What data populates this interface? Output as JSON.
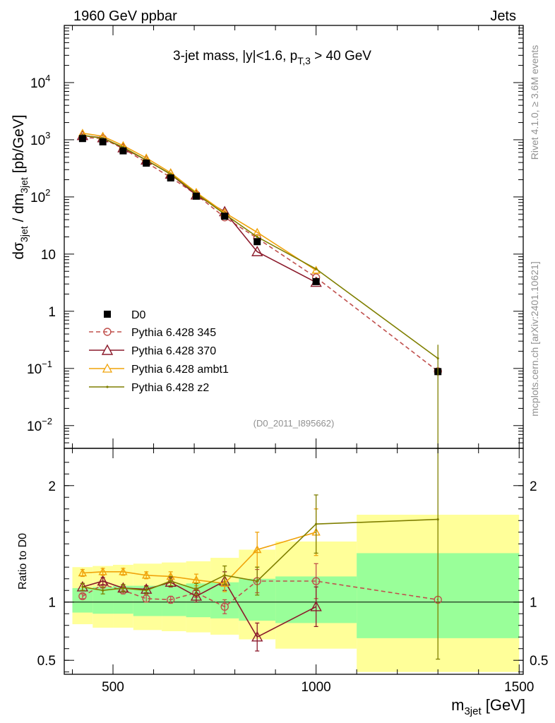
{
  "header": {
    "left": "1960 GeV ppbar",
    "right": "Jets",
    "plot_title_main": "3-jet mass, |y|<1.6, p",
    "plot_title_sub": "T,3",
    "plot_title_tail": " > 40 GeV",
    "analysis_id": "(D0_2011_I895662)",
    "side_top": "Rivet 4.1.0, ≥ 3.6M events",
    "side_bottom": "mcplots.cern.ch [arXiv:2401.10621]"
  },
  "axes": {
    "ylabel_main": "dσ",
    "ylabel_main_sub": "3jet",
    "ylabel_main_mid": " / dm",
    "ylabel_main_sub2": "3jet",
    "ylabel_main_tail": " [pb/GeV]",
    "ylabel_ratio": "Ratio to D0",
    "xlabel": "m",
    "xlabel_sub": "3jet",
    "xlabel_tail": " [GeV]"
  },
  "chart_data": {
    "type": "line",
    "x_range": [
      380,
      1510
    ],
    "main": {
      "yscale": "log",
      "y_range": [
        0.004,
        100000
      ],
      "major_ticks": [
        {
          "v": 0.01,
          "label": "10",
          "exp": "−2"
        },
        {
          "v": 0.1,
          "label": "10",
          "exp": "−1"
        },
        {
          "v": 1,
          "label": "1",
          "exp": ""
        },
        {
          "v": 10,
          "label": "10",
          "exp": ""
        },
        {
          "v": 100,
          "label": "10",
          "exp": "2"
        },
        {
          "v": 1000,
          "label": "10",
          "exp": "3"
        },
        {
          "v": 10000,
          "label": "10",
          "exp": "4"
        }
      ]
    },
    "ratio": {
      "y_range": [
        0.38,
        2.32
      ],
      "ticks": [
        {
          "v": 0.5,
          "label": "0.5"
        },
        {
          "v": 1,
          "label": "1"
        },
        {
          "v": 2,
          "label": "2"
        }
      ],
      "band_green": [
        {
          "x0": 400,
          "x1": 450,
          "lo": 0.91,
          "hi": 1.12
        },
        {
          "x0": 450,
          "x1": 500,
          "lo": 0.9,
          "hi": 1.13
        },
        {
          "x0": 500,
          "x1": 550,
          "lo": 0.9,
          "hi": 1.14
        },
        {
          "x0": 550,
          "x1": 620,
          "lo": 0.88,
          "hi": 1.14
        },
        {
          "x0": 620,
          "x1": 680,
          "lo": 0.88,
          "hi": 1.15
        },
        {
          "x0": 680,
          "x1": 740,
          "lo": 0.87,
          "hi": 1.16
        },
        {
          "x0": 740,
          "x1": 810,
          "lo": 0.86,
          "hi": 1.17
        },
        {
          "x0": 810,
          "x1": 900,
          "lo": 0.84,
          "hi": 1.2
        },
        {
          "x0": 900,
          "x1": 1100,
          "lo": 0.82,
          "hi": 1.22
        },
        {
          "x0": 1100,
          "x1": 1500,
          "lo": 0.69,
          "hi": 1.42
        }
      ],
      "band_yellow": [
        {
          "x0": 400,
          "x1": 450,
          "lo": 0.81,
          "hi": 1.3
        },
        {
          "x0": 450,
          "x1": 500,
          "lo": 0.78,
          "hi": 1.31
        },
        {
          "x0": 500,
          "x1": 550,
          "lo": 0.78,
          "hi": 1.32
        },
        {
          "x0": 550,
          "x1": 620,
          "lo": 0.76,
          "hi": 1.33
        },
        {
          "x0": 620,
          "x1": 680,
          "lo": 0.75,
          "hi": 1.34
        },
        {
          "x0": 680,
          "x1": 740,
          "lo": 0.74,
          "hi": 1.35
        },
        {
          "x0": 740,
          "x1": 810,
          "lo": 0.72,
          "hi": 1.38
        },
        {
          "x0": 810,
          "x1": 900,
          "lo": 0.68,
          "hi": 1.45
        },
        {
          "x0": 900,
          "x1": 1100,
          "lo": 0.6,
          "hi": 1.52
        },
        {
          "x0": 1100,
          "x1": 1500,
          "lo": 0.4,
          "hi": 1.75
        }
      ]
    },
    "data_series": {
      "name": "D0",
      "color": "#000000",
      "x": [
        425,
        475,
        525,
        582,
        642,
        705,
        775,
        855,
        1000,
        1300
      ],
      "y": [
        1050,
        920,
        640,
        390,
        215,
        103,
        46,
        16.5,
        3.3,
        0.088
      ]
    },
    "series": [
      {
        "name": "Pythia 6.428 345",
        "color": "#c0504d",
        "marker": "circle",
        "dash": "6,4",
        "x": [
          425,
          475,
          525,
          582,
          642,
          705,
          775,
          855,
          1000,
          1300
        ],
        "y": [
          1100,
          1050,
          700,
          400,
          220,
          110,
          44,
          19,
          3.9,
          0.089
        ],
        "ratio": [
          1.05,
          1.15,
          1.1,
          1.03,
          1.02,
          1.08,
          0.96,
          1.18,
          1.18,
          1.02
        ],
        "ratio_err": [
          0.02,
          0.03,
          0.03,
          0.03,
          0.03,
          0.04,
          0.06,
          0.1,
          0.15,
          0
        ]
      },
      {
        "name": "Pythia 6.428 370",
        "color": "#8b1a2b",
        "marker": "triangle",
        "dash": "",
        "x": [
          425,
          475,
          525,
          582,
          642,
          705,
          775,
          855,
          1000
        ],
        "y": [
          1180,
          1080,
          720,
          440,
          250,
          108,
          55,
          11,
          3.2
        ],
        "ratio": [
          1.13,
          1.18,
          1.12,
          1.11,
          1.17,
          1.05,
          1.18,
          0.7,
          0.96
        ],
        "ratio_err": [
          0.03,
          0.03,
          0.03,
          0.03,
          0.04,
          0.05,
          0.08,
          0.12,
          0.17
        ]
      },
      {
        "name": "Pythia 6.428 ambt1",
        "color": "#f0a30a",
        "marker": "triangle",
        "dash": "",
        "x": [
          425,
          475,
          525,
          582,
          642,
          705,
          775,
          855,
          1000
        ],
        "y": [
          1300,
          1150,
          790,
          480,
          265,
          120,
          53,
          24,
          5.2
        ],
        "ratio": [
          1.25,
          1.26,
          1.26,
          1.23,
          1.22,
          1.19,
          1.16,
          1.45,
          1.6
        ],
        "ratio_err": [
          0.03,
          0.03,
          0.03,
          0.03,
          0.04,
          0.05,
          0.07,
          0.15,
          0.2
        ]
      },
      {
        "name": "Pythia 6.428 z2",
        "color": "#7f7f00",
        "marker": "dot",
        "dash": "",
        "x": [
          425,
          475,
          525,
          582,
          642,
          705,
          775,
          855,
          1000,
          1300
        ],
        "y": [
          1200,
          1060,
          740,
          440,
          250,
          115,
          50,
          20,
          5.5,
          0.15
        ],
        "ratio": [
          1.13,
          1.1,
          1.12,
          1.1,
          1.18,
          1.11,
          1.23,
          1.18,
          1.67,
          1.71
        ],
        "ratio_err": [
          0.03,
          0.03,
          0.03,
          0.03,
          0.04,
          0.05,
          0.08,
          0.12,
          0.25,
          1.2
        ]
      }
    ],
    "x_ticks": [
      {
        "v": 500,
        "label": "500"
      },
      {
        "v": 1000,
        "label": "1000"
      },
      {
        "v": 1500,
        "label": "1500"
      }
    ]
  }
}
